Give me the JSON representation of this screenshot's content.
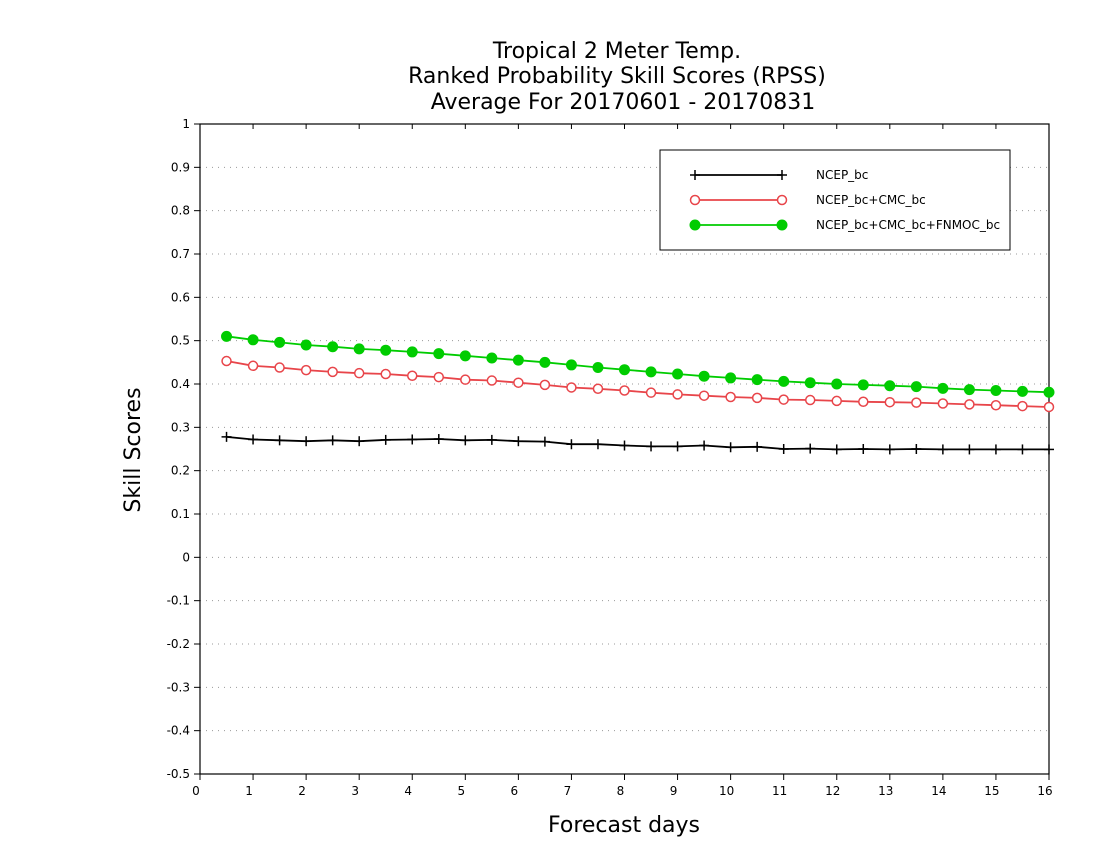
{
  "chart_data": {
    "type": "line",
    "title_lines": [
      "Tropical 2 Meter Temp.",
      "Ranked Probability Skill Scores (RPSS)",
      "Average For 20170601 - 20170831"
    ],
    "xlabel": "Forecast days",
    "ylabel": "Skill Scores",
    "xlim": [
      0,
      16
    ],
    "ylim": [
      -0.5,
      1
    ],
    "xticks": [
      0,
      1,
      2,
      3,
      4,
      5,
      6,
      7,
      8,
      9,
      10,
      11,
      12,
      13,
      14,
      15,
      16
    ],
    "yticks": [
      -0.5,
      -0.4,
      -0.3,
      -0.2,
      -0.1,
      0,
      0.1,
      0.2,
      0.3,
      0.4,
      0.5,
      0.6,
      0.7,
      0.8,
      0.9,
      1
    ],
    "ytick_labels": [
      "-0.5",
      "-0.4",
      "-0.3",
      "-0.2",
      "-0.1",
      "0",
      "0.1",
      "0.2",
      "0.3",
      "0.4",
      "0.5",
      "0.6",
      "0.7",
      "0.8",
      "0.9",
      "1"
    ],
    "grid": "horizontal dotted",
    "legend_position": "top-right",
    "x": [
      0.5,
      1,
      1.5,
      2,
      2.5,
      3,
      3.5,
      4,
      4.5,
      5,
      5.5,
      6,
      6.5,
      7,
      7.5,
      8,
      8.5,
      9,
      9.5,
      10,
      10.5,
      11,
      11.5,
      12,
      12.5,
      13,
      13.5,
      14,
      14.5,
      15,
      15.5,
      16
    ],
    "series": [
      {
        "name": "NCEP_bc",
        "color": "#000000",
        "marker": "plus",
        "values": [
          0.278,
          0.272,
          0.27,
          0.268,
          0.27,
          0.268,
          0.271,
          0.272,
          0.273,
          0.27,
          0.271,
          0.268,
          0.267,
          0.261,
          0.261,
          0.258,
          0.256,
          0.256,
          0.258,
          0.254,
          0.255,
          0.25,
          0.251,
          0.249,
          0.25,
          0.249,
          0.25,
          0.249,
          0.249,
          0.249,
          0.249,
          0.249
        ]
      },
      {
        "name": "NCEP_bc+CMC_bc",
        "color": "#e8454a",
        "marker": "open-circle",
        "values": [
          0.453,
          0.442,
          0.438,
          0.432,
          0.428,
          0.425,
          0.423,
          0.419,
          0.416,
          0.41,
          0.408,
          0.403,
          0.398,
          0.392,
          0.389,
          0.385,
          0.38,
          0.376,
          0.373,
          0.37,
          0.368,
          0.364,
          0.363,
          0.361,
          0.359,
          0.358,
          0.357,
          0.355,
          0.353,
          0.351,
          0.349,
          0.347
        ]
      },
      {
        "name": "NCEP_bc+CMC_bc+FNMOC_bc",
        "color": "#00cc00",
        "marker": "filled-circle",
        "values": [
          0.51,
          0.502,
          0.496,
          0.49,
          0.486,
          0.481,
          0.478,
          0.474,
          0.47,
          0.465,
          0.46,
          0.455,
          0.45,
          0.444,
          0.438,
          0.433,
          0.428,
          0.423,
          0.418,
          0.414,
          0.41,
          0.406,
          0.403,
          0.4,
          0.398,
          0.396,
          0.394,
          0.39,
          0.387,
          0.385,
          0.383,
          0.381
        ]
      }
    ]
  }
}
